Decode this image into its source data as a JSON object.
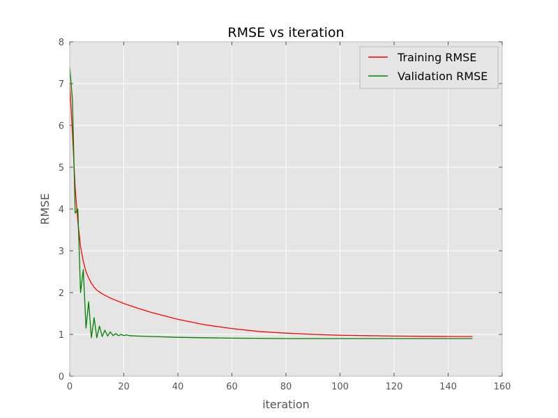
{
  "chart_data": {
    "type": "line",
    "title": "RMSE vs iteration",
    "xlabel": "iteration",
    "ylabel": "RMSE",
    "xlim": [
      0,
      160
    ],
    "ylim": [
      0,
      8
    ],
    "xticks": [
      0,
      20,
      40,
      60,
      80,
      100,
      120,
      140,
      160
    ],
    "yticks": [
      0,
      1,
      2,
      3,
      4,
      5,
      6,
      7,
      8
    ],
    "grid": true,
    "legend_position": "top-right",
    "series": [
      {
        "name": "Training RMSE",
        "color": "#ff0000",
        "x": [
          0,
          1,
          2,
          3,
          4,
          5,
          6,
          7,
          8,
          9,
          10,
          12,
          15,
          20,
          25,
          30,
          40,
          50,
          60,
          70,
          80,
          90,
          100,
          110,
          120,
          130,
          140,
          149
        ],
        "y": [
          7.0,
          5.8,
          4.5,
          3.7,
          3.1,
          2.75,
          2.5,
          2.35,
          2.22,
          2.13,
          2.06,
          1.97,
          1.87,
          1.74,
          1.63,
          1.53,
          1.36,
          1.23,
          1.14,
          1.07,
          1.03,
          1.0,
          0.98,
          0.97,
          0.96,
          0.955,
          0.95,
          0.95
        ]
      },
      {
        "name": "Validation RMSE",
        "color": "#008000",
        "x": [
          0,
          1,
          2,
          3,
          4,
          5,
          6,
          7,
          8,
          9,
          10,
          11,
          12,
          13,
          14,
          15,
          16,
          17,
          18,
          19,
          20,
          21,
          22,
          25,
          30,
          40,
          50,
          60,
          80,
          100,
          120,
          140,
          149
        ],
        "y": [
          7.4,
          6.6,
          3.9,
          4.0,
          2.0,
          2.55,
          1.15,
          1.78,
          0.92,
          1.4,
          0.92,
          1.2,
          0.95,
          1.1,
          0.96,
          1.06,
          0.97,
          1.02,
          0.97,
          1.0,
          0.97,
          0.99,
          0.97,
          0.96,
          0.95,
          0.93,
          0.92,
          0.91,
          0.9,
          0.9,
          0.9,
          0.9,
          0.9
        ]
      }
    ]
  }
}
